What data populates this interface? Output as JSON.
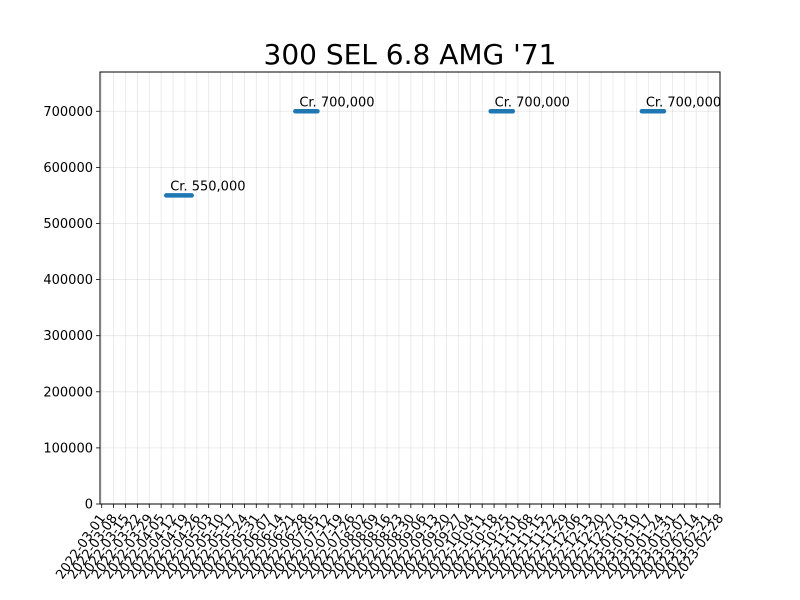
{
  "chart_data": {
    "type": "line",
    "title": "300 SEL 6.8 AMG '71",
    "xlabel": "",
    "ylabel": "",
    "grid": true,
    "x_ticks": [
      "2022-03-01",
      "2022-03-08",
      "2022-03-15",
      "2022-03-22",
      "2022-03-29",
      "2022-04-05",
      "2022-04-12",
      "2022-04-19",
      "2022-04-26",
      "2022-05-03",
      "2022-05-10",
      "2022-05-17",
      "2022-05-24",
      "2022-05-31",
      "2022-06-07",
      "2022-06-14",
      "2022-06-21",
      "2022-06-28",
      "2022-07-05",
      "2022-07-12",
      "2022-07-19",
      "2022-07-26",
      "2022-08-02",
      "2022-08-09",
      "2022-08-16",
      "2022-08-23",
      "2022-08-30",
      "2022-09-06",
      "2022-09-13",
      "2022-09-20",
      "2022-09-27",
      "2022-10-04",
      "2022-10-11",
      "2022-10-18",
      "2022-10-25",
      "2022-11-01",
      "2022-11-08",
      "2022-11-15",
      "2022-11-22",
      "2022-11-29",
      "2022-12-06",
      "2022-12-13",
      "2022-12-20",
      "2022-12-27",
      "2023-01-03",
      "2023-01-10",
      "2023-01-17",
      "2023-01-24",
      "2023-01-31",
      "2023-02-07",
      "2023-02-14",
      "2023-02-21",
      "2023-02-28"
    ],
    "y_ticks": [
      0,
      100000,
      200000,
      300000,
      400000,
      500000,
      600000,
      700000
    ],
    "y_tick_labels": [
      "0",
      "100000",
      "200000",
      "300000",
      "400000",
      "500000",
      "600000",
      "700000"
    ],
    "ylim": [
      0,
      770000
    ],
    "segments": [
      {
        "x_start": "2022-04-08",
        "x_end": "2022-04-23",
        "y": 550000,
        "label": "Cr. 550,000"
      },
      {
        "x_start": "2022-06-23",
        "x_end": "2022-07-06",
        "y": 700000,
        "label": "Cr. 700,000"
      },
      {
        "x_start": "2022-10-16",
        "x_end": "2022-10-29",
        "y": 700000,
        "label": "Cr. 700,000"
      },
      {
        "x_start": "2023-01-13",
        "x_end": "2023-01-26",
        "y": 700000,
        "label": "Cr. 700,000"
      }
    ],
    "colors": {
      "series": "#1f77b4",
      "grid": "#b0b0b0"
    }
  }
}
